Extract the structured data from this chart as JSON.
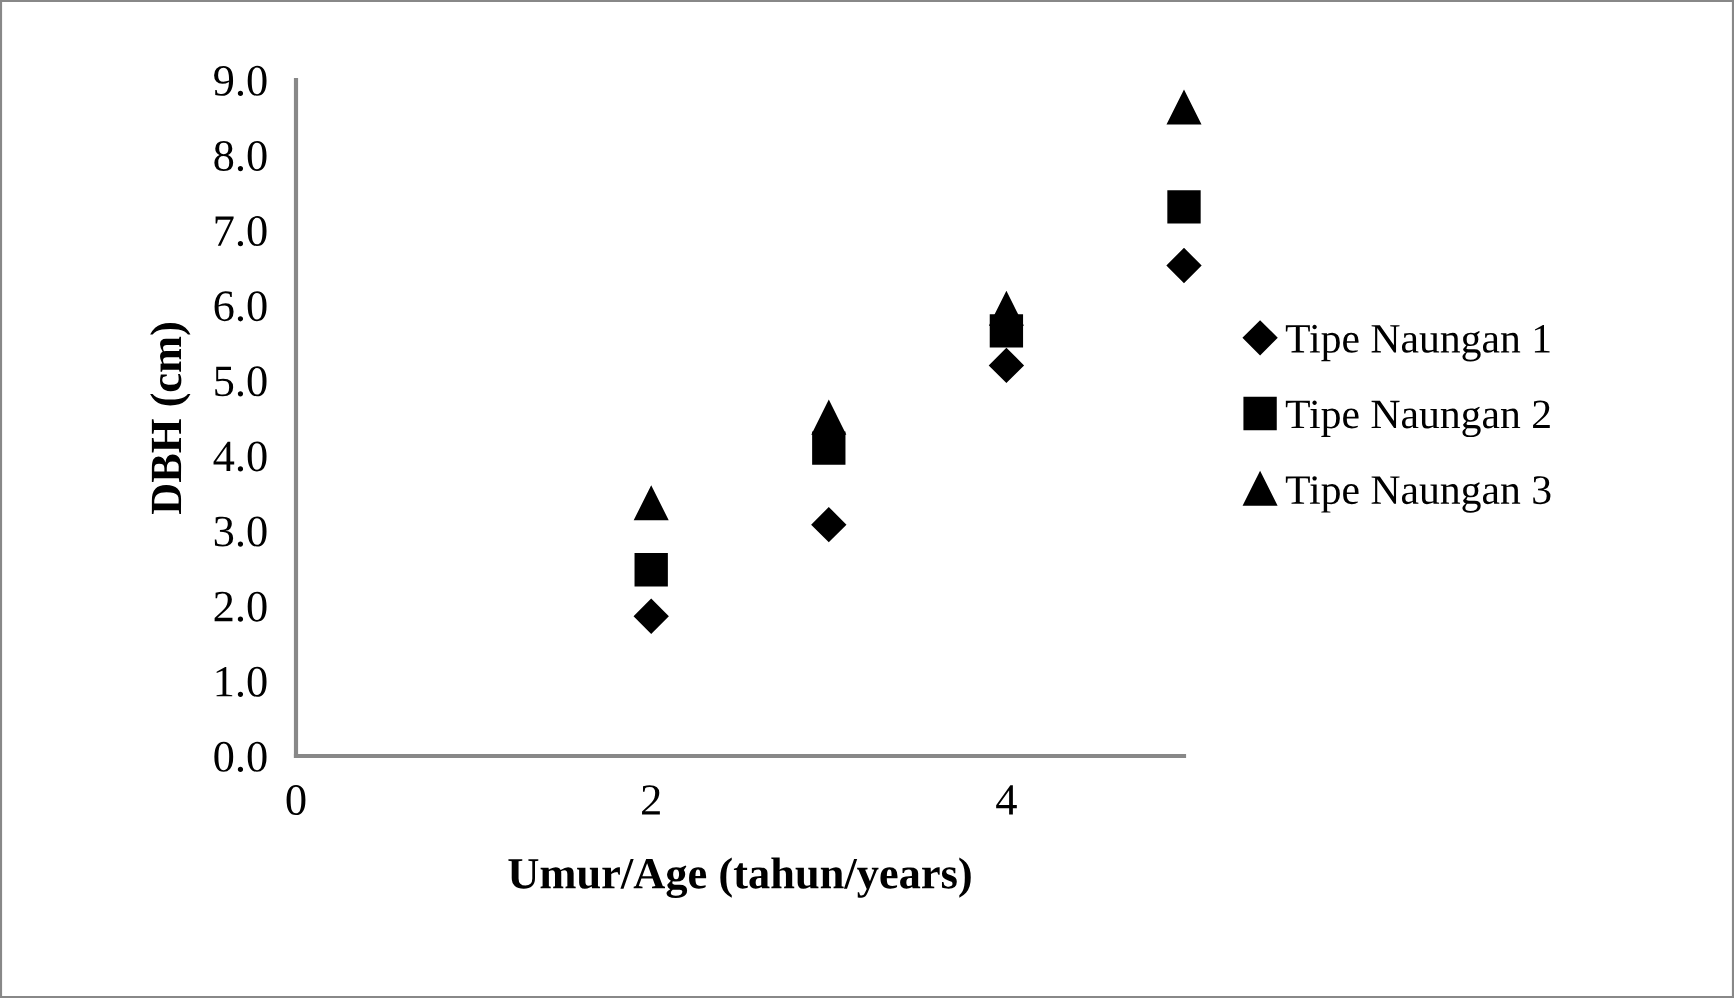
{
  "chart_data": {
    "type": "scatter",
    "xlabel": "Umur/Age (tahun/years)",
    "ylabel": "DBH (cm)",
    "x": [
      2,
      3,
      4,
      5
    ],
    "series": [
      {
        "name": "Tipe Naungan 1",
        "color": "#000000",
        "marker": "diamond",
        "values": [
          1.86,
          3.08,
          5.2,
          6.53
        ]
      },
      {
        "name": "Tipe Naungan 2",
        "color": "#000000",
        "marker": "square",
        "values": [
          2.48,
          4.1,
          5.66,
          7.31
        ]
      },
      {
        "name": "Tipe Naungan 3",
        "color": "#000000",
        "marker": "triangle",
        "values": [
          3.36,
          4.5,
          5.95,
          8.63
        ]
      }
    ],
    "xlim": [
      0,
      5
    ],
    "xticks": [
      0,
      2,
      4
    ],
    "ylim": [
      0,
      9
    ],
    "yticks": [
      {
        "value": 0,
        "label": "0.0"
      },
      {
        "value": 1,
        "label": "1.0"
      },
      {
        "value": 2,
        "label": "2.0"
      },
      {
        "value": 3,
        "label": "3.0"
      },
      {
        "value": 4,
        "label": "4.0"
      },
      {
        "value": 5,
        "label": "5.0"
      },
      {
        "value": 6,
        "label": "6.0"
      },
      {
        "value": 7,
        "label": "7.0"
      },
      {
        "value": 8,
        "label": "8.0"
      },
      {
        "value": 9,
        "label": "9.0"
      }
    ],
    "grid": false,
    "legend": "right"
  }
}
